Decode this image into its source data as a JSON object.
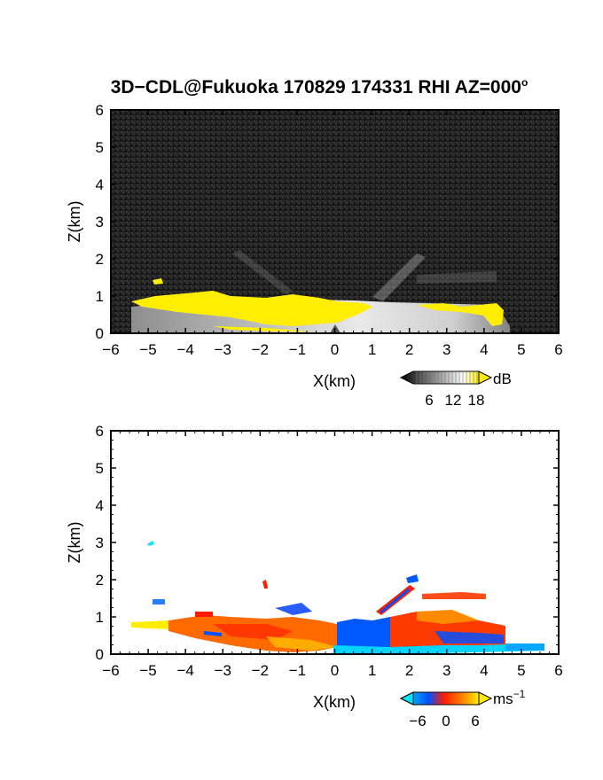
{
  "title": "3D−CDL@Fukuoka 170829 174331 RHI AZ=000",
  "title_degree": "o",
  "chart_data": [
    {
      "type": "heatmap",
      "field": "reflectivity",
      "xlabel": "X(km)",
      "ylabel": "Z(km)",
      "xlim": [
        -6,
        6
      ],
      "ylim": [
        0,
        6
      ],
      "xticks": [
        "−6",
        "−5",
        "−4",
        "−3",
        "−2",
        "−1",
        "0",
        "1",
        "2",
        "3",
        "4",
        "5",
        "6"
      ],
      "yticks": [
        "0",
        "1",
        "2",
        "3",
        "4",
        "5",
        "6"
      ],
      "colorbar": {
        "ticks": [
          "6",
          "12",
          "18"
        ],
        "unit": "dB",
        "colors": [
          "#000000",
          "#ffffff",
          "#ffee00"
        ]
      },
      "background": "#1e1e1e",
      "echo_layer_top_km": [
        [
          -5.5,
          0.85
        ],
        [
          -4.0,
          0.9
        ],
        [
          -2.0,
          0.9
        ],
        [
          -1.0,
          0.95
        ],
        [
          0.0,
          0.9
        ],
        [
          1.0,
          0.85
        ],
        [
          2.0,
          0.8
        ],
        [
          3.0,
          0.82
        ],
        [
          4.0,
          0.85
        ],
        [
          4.6,
          0.8
        ]
      ]
    },
    {
      "type": "heatmap",
      "field": "doppler_velocity",
      "xlabel": "X(km)",
      "ylabel": "Z(km)",
      "xlim": [
        -6,
        6
      ],
      "ylim": [
        0,
        6
      ],
      "xticks": [
        "−6",
        "−5",
        "−4",
        "−3",
        "−2",
        "−1",
        "0",
        "1",
        "2",
        "3",
        "4",
        "5",
        "6"
      ],
      "yticks": [
        "0",
        "1",
        "2",
        "3",
        "4",
        "5",
        "6"
      ],
      "colorbar": {
        "ticks": [
          "−6",
          "0",
          "6"
        ],
        "unit": "ms",
        "unit_exponent": "−1",
        "colors": [
          "#00e5ff",
          "#0050ff",
          "#ff1a00",
          "#ffee00"
        ]
      },
      "regions": [
        {
          "x": [
            -5.5,
            -4.5
          ],
          "z_top": 0.85,
          "velocity": 5
        },
        {
          "x": [
            -4.5,
            -1.0
          ],
          "z_top": 0.95,
          "velocity": 2
        },
        {
          "x": [
            -1.0,
            0.0
          ],
          "z_top": 0.95,
          "velocity": 3
        },
        {
          "x": [
            0.0,
            1.0
          ],
          "z_top": 0.9,
          "velocity": -4
        },
        {
          "x": [
            1.0,
            4.6
          ],
          "z_top": 1.0,
          "velocity": 1
        },
        {
          "x": [
            0.0,
            5.6
          ],
          "z_top": 0.2,
          "velocity": -7
        }
      ]
    }
  ]
}
